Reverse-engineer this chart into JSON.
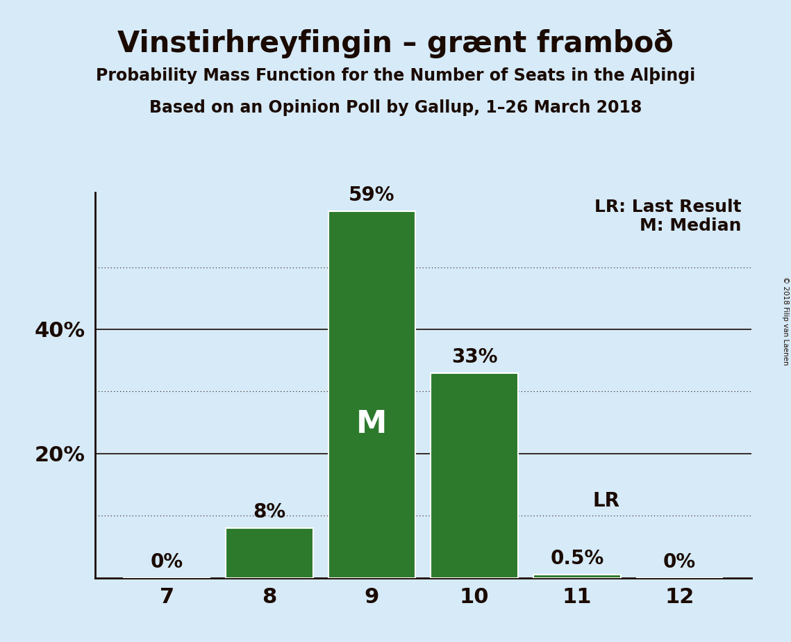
{
  "title": "Vinstirhreyfingin – grænt framboð",
  "subtitle1": "Probability Mass Function for the Number of Seats in the Alþingi",
  "subtitle2": "Based on an Opinion Poll by Gallup, 1–26 March 2018",
  "copyright": "© 2018 Filip van Laenen",
  "categories": [
    7,
    8,
    9,
    10,
    11,
    12
  ],
  "values": [
    0.0,
    8.0,
    59.0,
    33.0,
    0.5,
    0.0
  ],
  "bar_color": "#2d7a2d",
  "bar_edge_color": "#ffffff",
  "background_color": "#d6eaf8",
  "text_color": "#1a0a00",
  "median_seat": 9,
  "lr_seat": 11,
  "ylim": [
    0,
    62
  ],
  "yticks_solid": [
    20,
    40
  ],
  "yticks_dotted": [
    10,
    30,
    50
  ],
  "legend_text_line1": "LR: Last Result",
  "legend_text_line2": "M: Median",
  "bar_labels": [
    "0%",
    "8%",
    "59%",
    "33%",
    "0.5%",
    "0%"
  ]
}
